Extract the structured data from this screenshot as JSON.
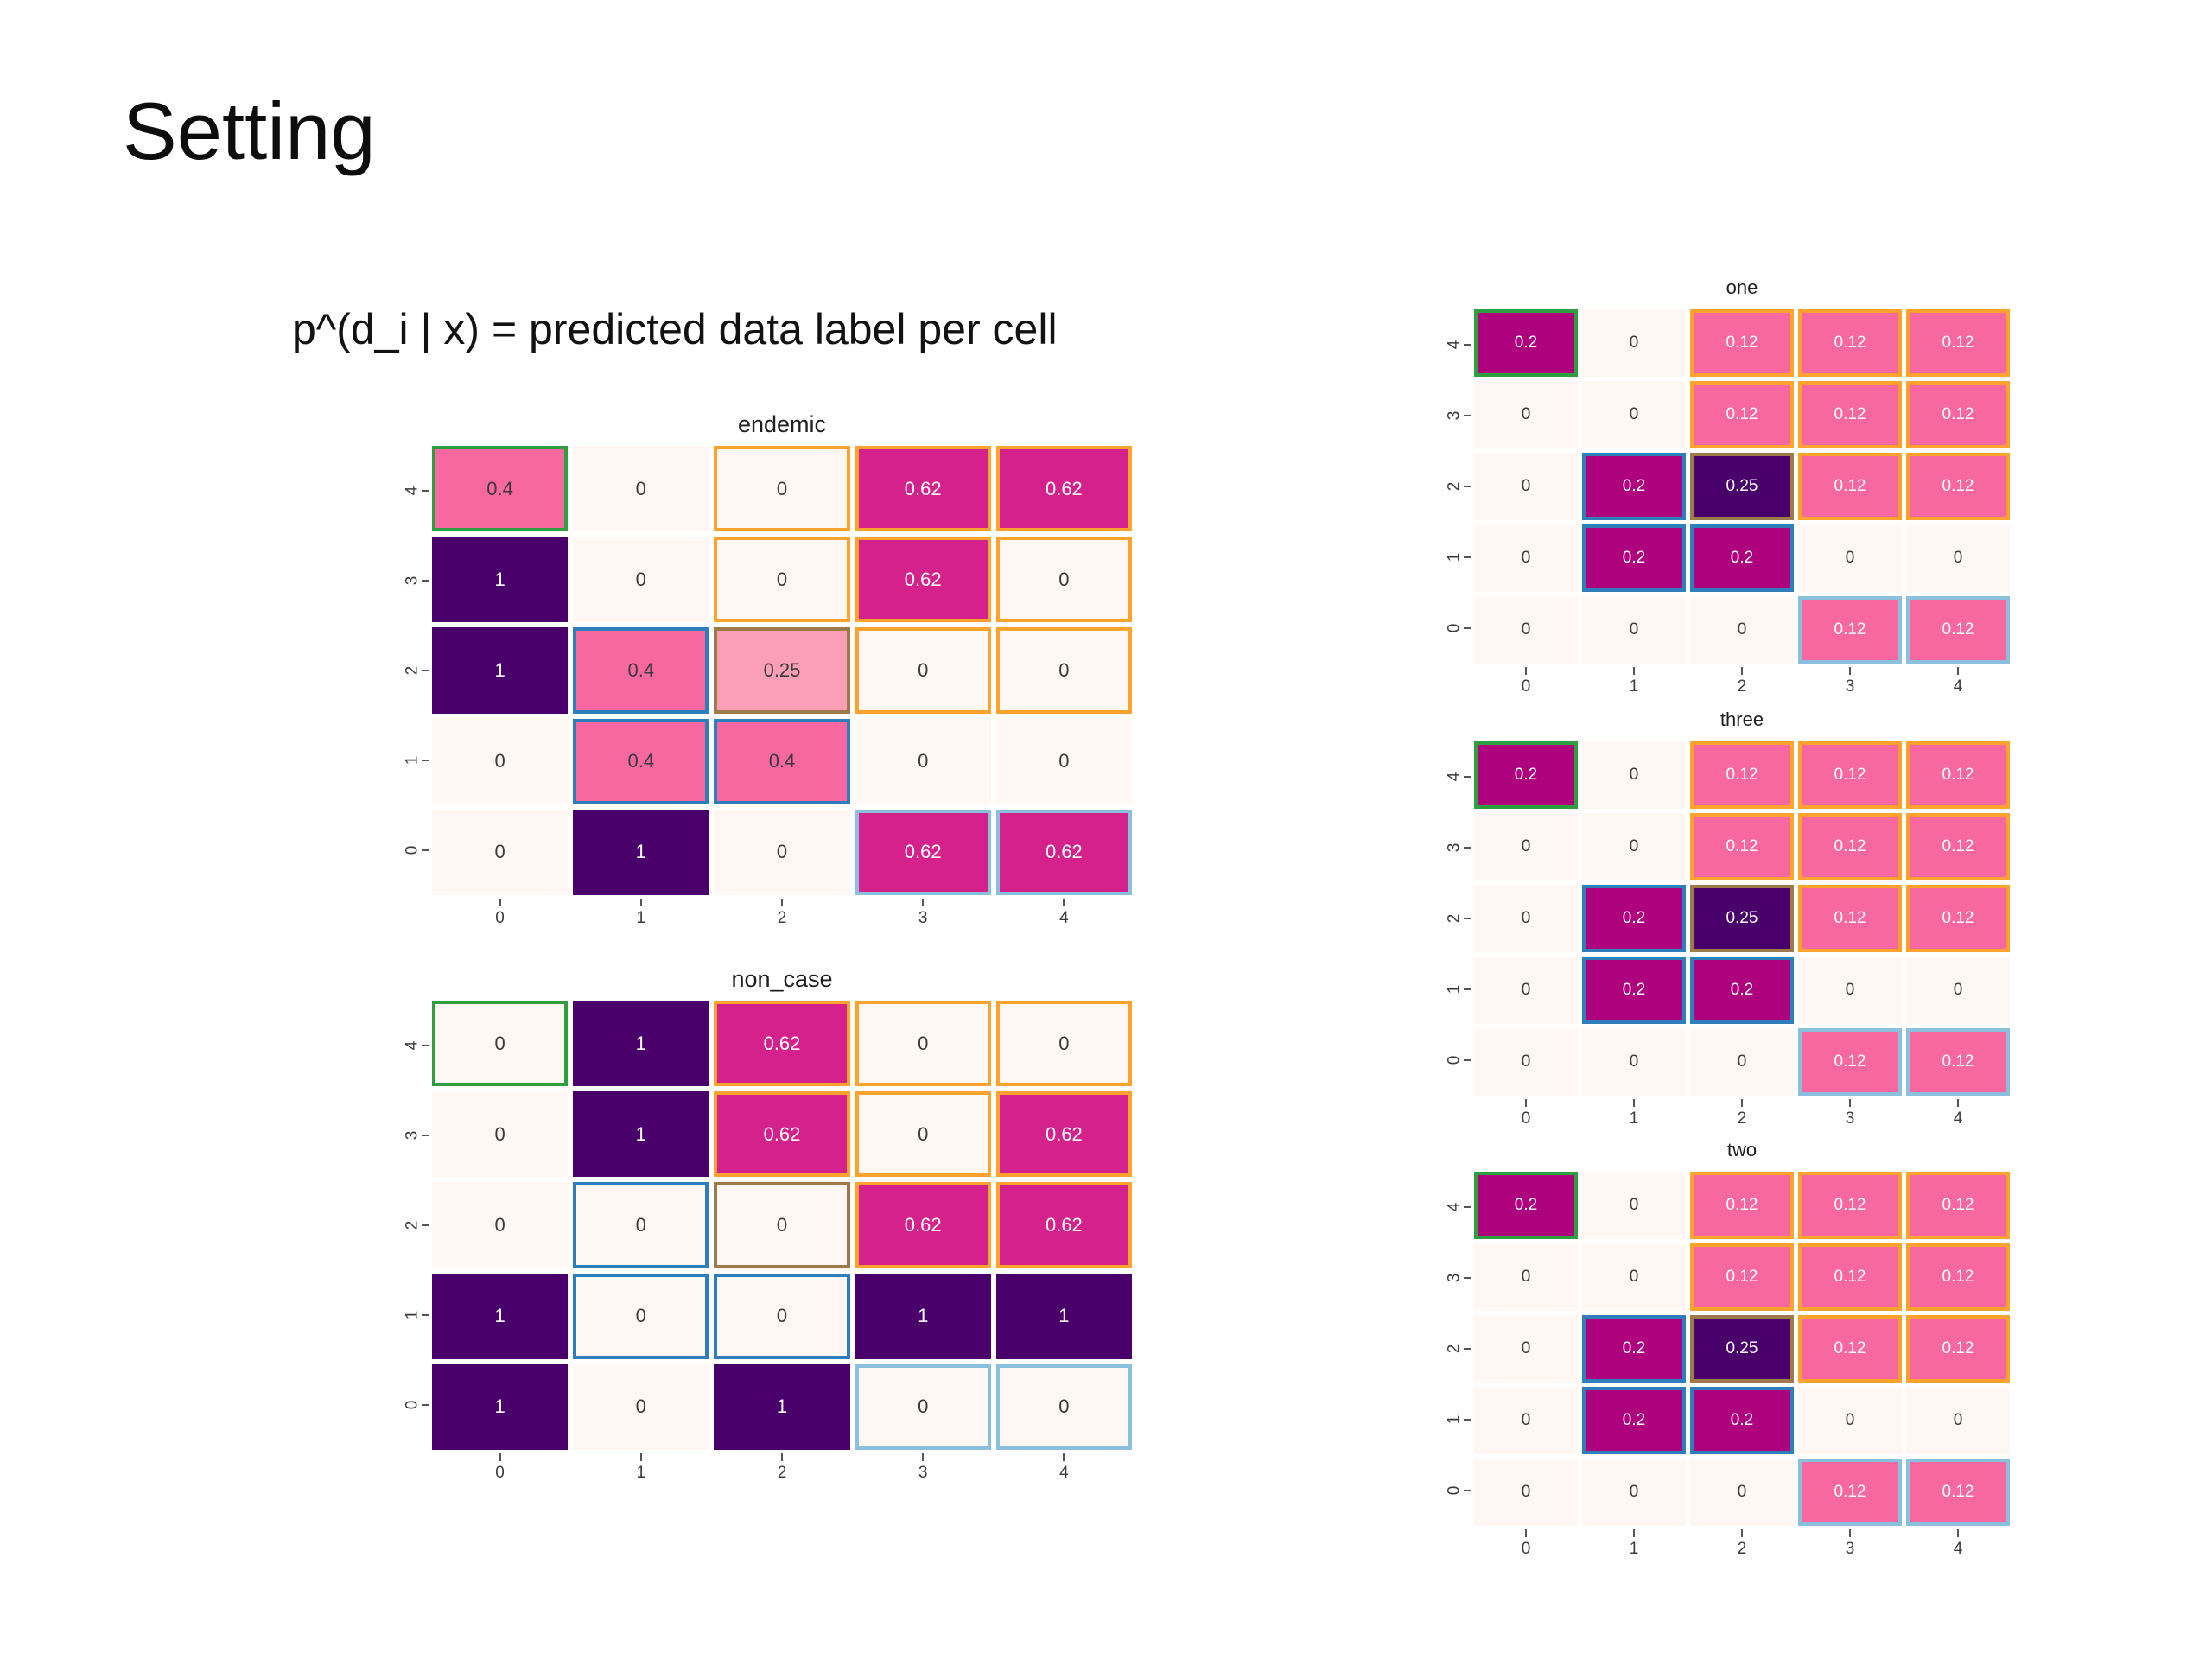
{
  "slide": {
    "title": "Setting",
    "formula": "p^(d_i | x) = predicted data label per cell"
  },
  "palette": {
    "n": "#fff7f3",
    "p1": "#fa9fb5",
    "p2": "#f768a1",
    "p3": "#d4218c",
    "p4": "#ae017e",
    "p5": "#49006a"
  },
  "border_colors": {
    "green": "#2f9e3f",
    "orange": "#ffa22e",
    "blue": "#2e7ebc",
    "lightblue": "#8bbfde",
    "olive": "#9c7a4a"
  },
  "text_colors": {
    "d": "#3a3a3a",
    "l": "#ffffff"
  },
  "chart_data": [
    {
      "type": "heatmap",
      "title": "endemic",
      "x_ticks": [
        "0",
        "1",
        "2",
        "3",
        "4"
      ],
      "y_ticks": [
        "4",
        "3",
        "2",
        "1",
        "0"
      ],
      "value_range": [
        0,
        1
      ],
      "cells": [
        [
          {
            "v": "0.4",
            "bg": "p2",
            "tx": "d",
            "bd": "green"
          },
          {
            "v": "0",
            "bg": "n",
            "tx": "d"
          },
          {
            "v": "0",
            "bg": "n",
            "tx": "d",
            "bd": "orange"
          },
          {
            "v": "0.62",
            "bg": "p3",
            "tx": "l",
            "bd": "orange"
          },
          {
            "v": "0.62",
            "bg": "p3",
            "tx": "l",
            "bd": "orange"
          }
        ],
        [
          {
            "v": "1",
            "bg": "p5",
            "tx": "l"
          },
          {
            "v": "0",
            "bg": "n",
            "tx": "d"
          },
          {
            "v": "0",
            "bg": "n",
            "tx": "d",
            "bd": "orange"
          },
          {
            "v": "0.62",
            "bg": "p3",
            "tx": "l",
            "bd": "orange"
          },
          {
            "v": "0",
            "bg": "n",
            "tx": "d",
            "bd": "orange"
          }
        ],
        [
          {
            "v": "1",
            "bg": "p5",
            "tx": "l"
          },
          {
            "v": "0.4",
            "bg": "p2",
            "tx": "d",
            "bd": "blue"
          },
          {
            "v": "0.25",
            "bg": "p1",
            "tx": "d",
            "bd": "olive"
          },
          {
            "v": "0",
            "bg": "n",
            "tx": "d",
            "bd": "orange"
          },
          {
            "v": "0",
            "bg": "n",
            "tx": "d",
            "bd": "orange"
          }
        ],
        [
          {
            "v": "0",
            "bg": "n",
            "tx": "d"
          },
          {
            "v": "0.4",
            "bg": "p2",
            "tx": "d",
            "bd": "blue"
          },
          {
            "v": "0.4",
            "bg": "p2",
            "tx": "d",
            "bd": "blue"
          },
          {
            "v": "0",
            "bg": "n",
            "tx": "d"
          },
          {
            "v": "0",
            "bg": "n",
            "tx": "d"
          }
        ],
        [
          {
            "v": "0",
            "bg": "n",
            "tx": "d"
          },
          {
            "v": "1",
            "bg": "p5",
            "tx": "l"
          },
          {
            "v": "0",
            "bg": "n",
            "tx": "d"
          },
          {
            "v": "0.62",
            "bg": "p3",
            "tx": "l",
            "bd": "lightblue"
          },
          {
            "v": "0.62",
            "bg": "p3",
            "tx": "l",
            "bd": "lightblue"
          }
        ]
      ]
    },
    {
      "type": "heatmap",
      "title": "non_case",
      "x_ticks": [
        "0",
        "1",
        "2",
        "3",
        "4"
      ],
      "y_ticks": [
        "4",
        "3",
        "2",
        "1",
        "0"
      ],
      "value_range": [
        0,
        1
      ],
      "cells": [
        [
          {
            "v": "0",
            "bg": "n",
            "tx": "d",
            "bd": "green"
          },
          {
            "v": "1",
            "bg": "p5",
            "tx": "l"
          },
          {
            "v": "0.62",
            "bg": "p3",
            "tx": "l",
            "bd": "orange"
          },
          {
            "v": "0",
            "bg": "n",
            "tx": "d",
            "bd": "orange"
          },
          {
            "v": "0",
            "bg": "n",
            "tx": "d",
            "bd": "orange"
          }
        ],
        [
          {
            "v": "0",
            "bg": "n",
            "tx": "d"
          },
          {
            "v": "1",
            "bg": "p5",
            "tx": "l"
          },
          {
            "v": "0.62",
            "bg": "p3",
            "tx": "l",
            "bd": "orange"
          },
          {
            "v": "0",
            "bg": "n",
            "tx": "d",
            "bd": "orange"
          },
          {
            "v": "0.62",
            "bg": "p3",
            "tx": "l",
            "bd": "orange"
          }
        ],
        [
          {
            "v": "0",
            "bg": "n",
            "tx": "d"
          },
          {
            "v": "0",
            "bg": "n",
            "tx": "d",
            "bd": "blue"
          },
          {
            "v": "0",
            "bg": "n",
            "tx": "d",
            "bd": "olive"
          },
          {
            "v": "0.62",
            "bg": "p3",
            "tx": "l",
            "bd": "orange"
          },
          {
            "v": "0.62",
            "bg": "p3",
            "tx": "l",
            "bd": "orange"
          }
        ],
        [
          {
            "v": "1",
            "bg": "p5",
            "tx": "l"
          },
          {
            "v": "0",
            "bg": "n",
            "tx": "d",
            "bd": "blue"
          },
          {
            "v": "0",
            "bg": "n",
            "tx": "d",
            "bd": "blue"
          },
          {
            "v": "1",
            "bg": "p5",
            "tx": "l"
          },
          {
            "v": "1",
            "bg": "p5",
            "tx": "l"
          }
        ],
        [
          {
            "v": "1",
            "bg": "p5",
            "tx": "l"
          },
          {
            "v": "0",
            "bg": "n",
            "tx": "d"
          },
          {
            "v": "1",
            "bg": "p5",
            "tx": "l"
          },
          {
            "v": "0",
            "bg": "n",
            "tx": "d",
            "bd": "lightblue"
          },
          {
            "v": "0",
            "bg": "n",
            "tx": "d",
            "bd": "lightblue"
          }
        ]
      ]
    },
    {
      "type": "heatmap",
      "title": "one",
      "x_ticks": [
        "0",
        "1",
        "2",
        "3",
        "4"
      ],
      "y_ticks": [
        "4",
        "3",
        "2",
        "1",
        "0"
      ],
      "value_range": [
        0,
        0.25
      ],
      "cells": [
        [
          {
            "v": "0.2",
            "bg": "p4",
            "tx": "l",
            "bd": "green"
          },
          {
            "v": "0",
            "bg": "n",
            "tx": "d"
          },
          {
            "v": "0.12",
            "bg": "p2",
            "tx": "l",
            "bd": "orange"
          },
          {
            "v": "0.12",
            "bg": "p2",
            "tx": "l",
            "bd": "orange"
          },
          {
            "v": "0.12",
            "bg": "p2",
            "tx": "l",
            "bd": "orange"
          }
        ],
        [
          {
            "v": "0",
            "bg": "n",
            "tx": "d"
          },
          {
            "v": "0",
            "bg": "n",
            "tx": "d"
          },
          {
            "v": "0.12",
            "bg": "p2",
            "tx": "l",
            "bd": "orange"
          },
          {
            "v": "0.12",
            "bg": "p2",
            "tx": "l",
            "bd": "orange"
          },
          {
            "v": "0.12",
            "bg": "p2",
            "tx": "l",
            "bd": "orange"
          }
        ],
        [
          {
            "v": "0",
            "bg": "n",
            "tx": "d"
          },
          {
            "v": "0.2",
            "bg": "p4",
            "tx": "l",
            "bd": "blue"
          },
          {
            "v": "0.25",
            "bg": "p5",
            "tx": "l",
            "bd": "olive"
          },
          {
            "v": "0.12",
            "bg": "p2",
            "tx": "l",
            "bd": "orange"
          },
          {
            "v": "0.12",
            "bg": "p2",
            "tx": "l",
            "bd": "orange"
          }
        ],
        [
          {
            "v": "0",
            "bg": "n",
            "tx": "d"
          },
          {
            "v": "0.2",
            "bg": "p4",
            "tx": "l",
            "bd": "blue"
          },
          {
            "v": "0.2",
            "bg": "p4",
            "tx": "l",
            "bd": "blue"
          },
          {
            "v": "0",
            "bg": "n",
            "tx": "d"
          },
          {
            "v": "0",
            "bg": "n",
            "tx": "d"
          }
        ],
        [
          {
            "v": "0",
            "bg": "n",
            "tx": "d"
          },
          {
            "v": "0",
            "bg": "n",
            "tx": "d"
          },
          {
            "v": "0",
            "bg": "n",
            "tx": "d"
          },
          {
            "v": "0.12",
            "bg": "p2",
            "tx": "l",
            "bd": "lightblue"
          },
          {
            "v": "0.12",
            "bg": "p2",
            "tx": "l",
            "bd": "lightblue"
          }
        ]
      ]
    },
    {
      "type": "heatmap",
      "title": "three",
      "x_ticks": [
        "0",
        "1",
        "2",
        "3",
        "4"
      ],
      "y_ticks": [
        "4",
        "3",
        "2",
        "1",
        "0"
      ],
      "value_range": [
        0,
        0.25
      ],
      "cells": [
        [
          {
            "v": "0.2",
            "bg": "p4",
            "tx": "l",
            "bd": "green"
          },
          {
            "v": "0",
            "bg": "n",
            "tx": "d"
          },
          {
            "v": "0.12",
            "bg": "p2",
            "tx": "l",
            "bd": "orange"
          },
          {
            "v": "0.12",
            "bg": "p2",
            "tx": "l",
            "bd": "orange"
          },
          {
            "v": "0.12",
            "bg": "p2",
            "tx": "l",
            "bd": "orange"
          }
        ],
        [
          {
            "v": "0",
            "bg": "n",
            "tx": "d"
          },
          {
            "v": "0",
            "bg": "n",
            "tx": "d"
          },
          {
            "v": "0.12",
            "bg": "p2",
            "tx": "l",
            "bd": "orange"
          },
          {
            "v": "0.12",
            "bg": "p2",
            "tx": "l",
            "bd": "orange"
          },
          {
            "v": "0.12",
            "bg": "p2",
            "tx": "l",
            "bd": "orange"
          }
        ],
        [
          {
            "v": "0",
            "bg": "n",
            "tx": "d"
          },
          {
            "v": "0.2",
            "bg": "p4",
            "tx": "l",
            "bd": "blue"
          },
          {
            "v": "0.25",
            "bg": "p5",
            "tx": "l",
            "bd": "olive"
          },
          {
            "v": "0.12",
            "bg": "p2",
            "tx": "l",
            "bd": "orange"
          },
          {
            "v": "0.12",
            "bg": "p2",
            "tx": "l",
            "bd": "orange"
          }
        ],
        [
          {
            "v": "0",
            "bg": "n",
            "tx": "d"
          },
          {
            "v": "0.2",
            "bg": "p4",
            "tx": "l",
            "bd": "blue"
          },
          {
            "v": "0.2",
            "bg": "p4",
            "tx": "l",
            "bd": "blue"
          },
          {
            "v": "0",
            "bg": "n",
            "tx": "d"
          },
          {
            "v": "0",
            "bg": "n",
            "tx": "d"
          }
        ],
        [
          {
            "v": "0",
            "bg": "n",
            "tx": "d"
          },
          {
            "v": "0",
            "bg": "n",
            "tx": "d"
          },
          {
            "v": "0",
            "bg": "n",
            "tx": "d"
          },
          {
            "v": "0.12",
            "bg": "p2",
            "tx": "l",
            "bd": "lightblue"
          },
          {
            "v": "0.12",
            "bg": "p2",
            "tx": "l",
            "bd": "lightblue"
          }
        ]
      ]
    },
    {
      "type": "heatmap",
      "title": "two",
      "x_ticks": [
        "0",
        "1",
        "2",
        "3",
        "4"
      ],
      "y_ticks": [
        "4",
        "3",
        "2",
        "1",
        "0"
      ],
      "value_range": [
        0,
        0.25
      ],
      "cells": [
        [
          {
            "v": "0.2",
            "bg": "p4",
            "tx": "l",
            "bd": "green"
          },
          {
            "v": "0",
            "bg": "n",
            "tx": "d"
          },
          {
            "v": "0.12",
            "bg": "p2",
            "tx": "l",
            "bd": "orange"
          },
          {
            "v": "0.12",
            "bg": "p2",
            "tx": "l",
            "bd": "orange"
          },
          {
            "v": "0.12",
            "bg": "p2",
            "tx": "l",
            "bd": "orange"
          }
        ],
        [
          {
            "v": "0",
            "bg": "n",
            "tx": "d"
          },
          {
            "v": "0",
            "bg": "n",
            "tx": "d"
          },
          {
            "v": "0.12",
            "bg": "p2",
            "tx": "l",
            "bd": "orange"
          },
          {
            "v": "0.12",
            "bg": "p2",
            "tx": "l",
            "bd": "orange"
          },
          {
            "v": "0.12",
            "bg": "p2",
            "tx": "l",
            "bd": "orange"
          }
        ],
        [
          {
            "v": "0",
            "bg": "n",
            "tx": "d"
          },
          {
            "v": "0.2",
            "bg": "p4",
            "tx": "l",
            "bd": "blue"
          },
          {
            "v": "0.25",
            "bg": "p5",
            "tx": "l",
            "bd": "olive"
          },
          {
            "v": "0.12",
            "bg": "p2",
            "tx": "l",
            "bd": "orange"
          },
          {
            "v": "0.12",
            "bg": "p2",
            "tx": "l",
            "bd": "orange"
          }
        ],
        [
          {
            "v": "0",
            "bg": "n",
            "tx": "d"
          },
          {
            "v": "0.2",
            "bg": "p4",
            "tx": "l",
            "bd": "blue"
          },
          {
            "v": "0.2",
            "bg": "p4",
            "tx": "l",
            "bd": "blue"
          },
          {
            "v": "0",
            "bg": "n",
            "tx": "d"
          },
          {
            "v": "0",
            "bg": "n",
            "tx": "d"
          }
        ],
        [
          {
            "v": "0",
            "bg": "n",
            "tx": "d"
          },
          {
            "v": "0",
            "bg": "n",
            "tx": "d"
          },
          {
            "v": "0",
            "bg": "n",
            "tx": "d"
          },
          {
            "v": "0.12",
            "bg": "p2",
            "tx": "l",
            "bd": "lightblue"
          },
          {
            "v": "0.12",
            "bg": "p2",
            "tx": "l",
            "bd": "lightblue"
          }
        ]
      ]
    }
  ]
}
